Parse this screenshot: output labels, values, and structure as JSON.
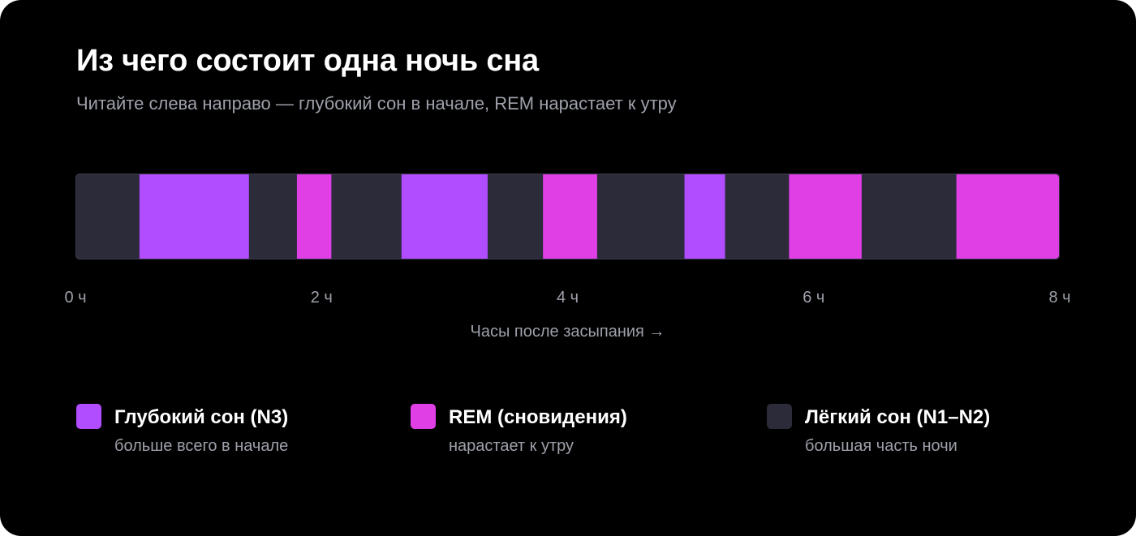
{
  "title": "Из чего состоит одна ночь сна",
  "subtitle": "Читайте слева направо — глубокий сон в начале, REM нарастает к утру",
  "colors": {
    "background": "#000000",
    "deep": "#b14cff",
    "rem": "#e03fe6",
    "light": "#2b2b3a"
  },
  "chart_data": {
    "type": "bar",
    "orientation": "horizontal-timeline",
    "xlabel": "Часы после засыпания →",
    "xlim": [
      0,
      8
    ],
    "x_unit": "ч",
    "ticks": [
      {
        "value": 0,
        "label": "0 ч"
      },
      {
        "value": 2,
        "label": "2 ч"
      },
      {
        "value": 4,
        "label": "4 ч"
      },
      {
        "value": 6,
        "label": "6 ч"
      },
      {
        "value": 8,
        "label": "8 ч"
      }
    ],
    "segments": [
      {
        "stage": "light",
        "start": 0.0,
        "end": 0.52
      },
      {
        "stage": "deep",
        "start": 0.52,
        "end": 1.41
      },
      {
        "stage": "light",
        "start": 1.41,
        "end": 1.8
      },
      {
        "stage": "rem",
        "start": 1.8,
        "end": 2.08
      },
      {
        "stage": "light",
        "start": 2.08,
        "end": 2.65
      },
      {
        "stage": "deep",
        "start": 2.65,
        "end": 3.35
      },
      {
        "stage": "light",
        "start": 3.35,
        "end": 3.8
      },
      {
        "stage": "rem",
        "start": 3.8,
        "end": 4.24
      },
      {
        "stage": "light",
        "start": 4.24,
        "end": 4.95
      },
      {
        "stage": "deep",
        "start": 4.95,
        "end": 5.28
      },
      {
        "stage": "light",
        "start": 5.28,
        "end": 5.8
      },
      {
        "stage": "rem",
        "start": 5.8,
        "end": 6.39
      },
      {
        "stage": "light",
        "start": 6.39,
        "end": 7.16
      },
      {
        "stage": "rem",
        "start": 7.16,
        "end": 8.0
      }
    ]
  },
  "legend": [
    {
      "stage": "deep",
      "label": "Глубокий сон (N3)",
      "note": "больше всего в начале"
    },
    {
      "stage": "rem",
      "label": "REM (сновидения)",
      "note": "нарастает к утру"
    },
    {
      "stage": "light",
      "label": "Лёгкий сон (N1–N2)",
      "note": "большая часть ночи"
    }
  ]
}
